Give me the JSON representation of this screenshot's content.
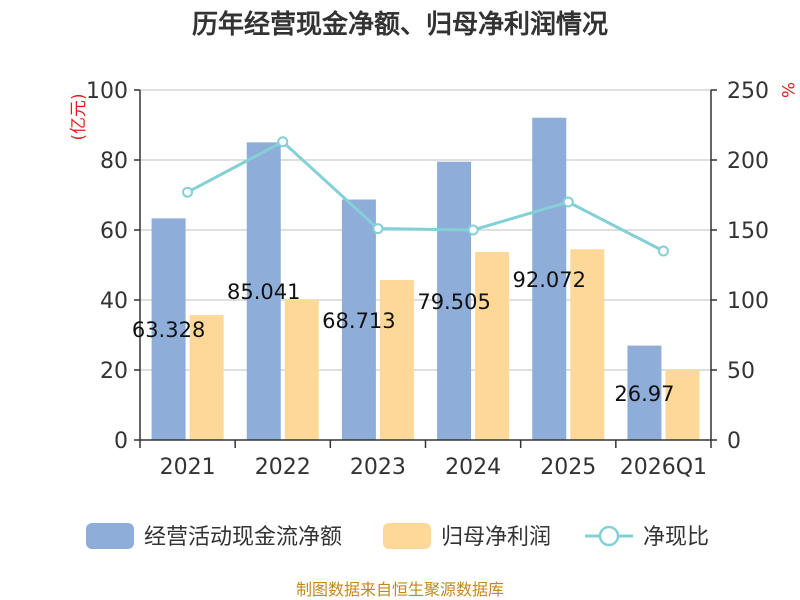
{
  "chart_data": {
    "type": "bar",
    "title": "历年经营现金净额、归母净利润情况",
    "categories": [
      "2021",
      "2022",
      "2023",
      "2024",
      "2025",
      "2026Q1"
    ],
    "y_left": {
      "unit": "(亿元)",
      "min": 0,
      "max": 100,
      "ticks": [
        0,
        20,
        40,
        60,
        80,
        100
      ]
    },
    "y_right": {
      "unit": "%",
      "min": 0,
      "max": 250,
      "ticks": [
        0,
        50,
        100,
        150,
        200,
        250
      ]
    },
    "grid": true,
    "legend_position": "bottom",
    "series": [
      {
        "name": "经营活动现金流净额",
        "type": "bar",
        "axis": "left",
        "color": "#8eadd9",
        "values": [
          63.328,
          85.041,
          68.713,
          79.505,
          92.072,
          26.97
        ],
        "labels": [
          "63.328",
          "85.041",
          "68.713",
          "79.505",
          "92.072",
          "26.97"
        ]
      },
      {
        "name": "归母净利润",
        "type": "bar",
        "axis": "left",
        "color": "#fed898",
        "values": [
          35.7,
          40.0,
          45.7,
          53.7,
          54.5,
          20.0
        ]
      },
      {
        "name": "净现比",
        "type": "line",
        "axis": "right",
        "color": "#83d0d6",
        "values": [
          177,
          213,
          151,
          150,
          170,
          135
        ]
      }
    ]
  },
  "source": "制图数据来自恒生聚源数据库"
}
